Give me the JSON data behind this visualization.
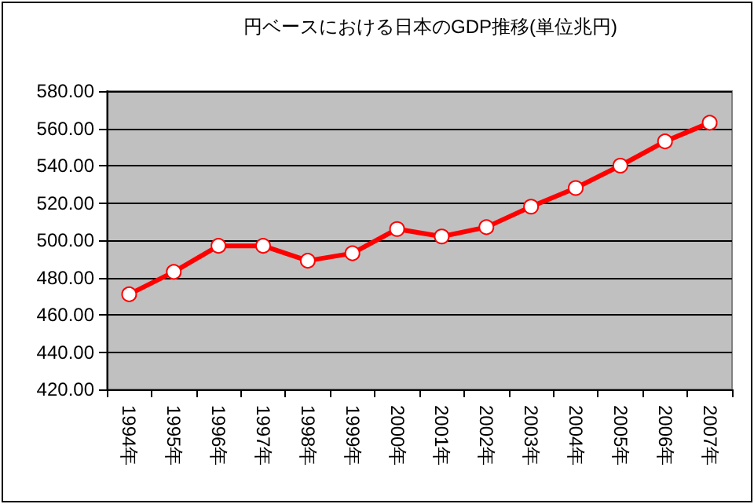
{
  "chart_data": {
    "type": "line",
    "title": "円ベースにおける日本のGDP推移(単位兆円)",
    "categories": [
      "1994年",
      "1995年",
      "1996年",
      "1997年",
      "1998年",
      "1999年",
      "2000年",
      "2001年",
      "2002年",
      "2003年",
      "2004年",
      "2005年",
      "2006年",
      "2007年"
    ],
    "series": [
      {
        "color": "#ff0000",
        "values": [
          471,
          483,
          497,
          497,
          489,
          493,
          506,
          502,
          507,
          518,
          528,
          540,
          553,
          563
        ]
      }
    ],
    "ylim": [
      420,
      580
    ],
    "yticks": [
      {
        "value": 420,
        "label": "420.00"
      },
      {
        "value": 440,
        "label": "440.00"
      },
      {
        "value": 460,
        "label": "460.00"
      },
      {
        "value": 480,
        "label": "480.00"
      },
      {
        "value": 500,
        "label": "500.00"
      },
      {
        "value": 520,
        "label": "520.00"
      },
      {
        "value": 540,
        "label": "540.00"
      },
      {
        "value": 560,
        "label": "560.00"
      },
      {
        "value": 580,
        "label": "580.00"
      }
    ],
    "grid": "y",
    "marker": "circle",
    "line_style": "solid"
  }
}
